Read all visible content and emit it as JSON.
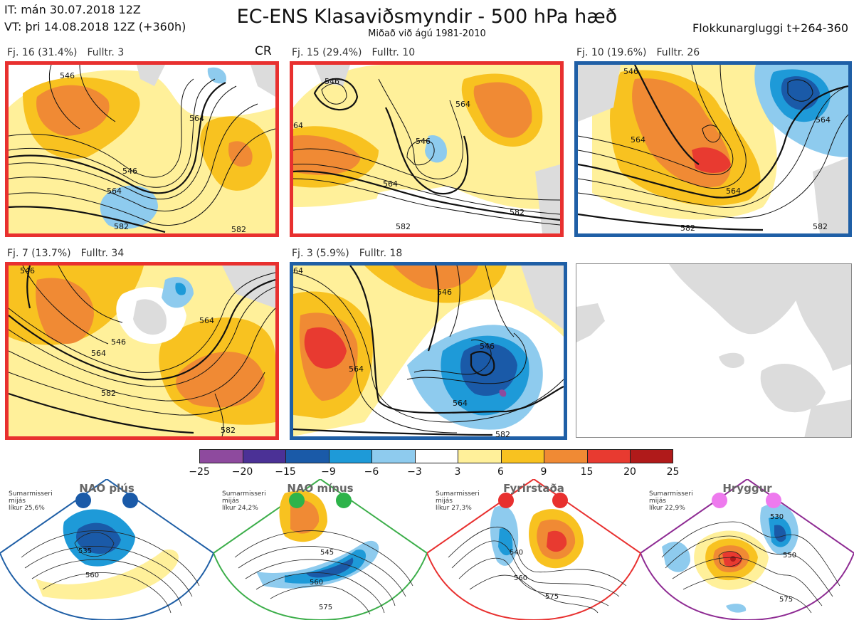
{
  "header": {
    "it_line": "IT: mán 30.07.2018 12Z",
    "vt_line": "VT: þri 14.08.2018 12Z  (+360h)",
    "title": "EC-ENS Klasaviðsmyndir - 500 hPa hæð",
    "subtitle": "Miðað við ágú 1981-2010",
    "window": "Flokkunargluggi t+264-360"
  },
  "panels": [
    {
      "label": "Fj. 16 (31.4%)",
      "rep": "Fulltr. 3",
      "border": "red"
    },
    {
      "label": "Fj. 15 (29.4%)",
      "rep": "Fulltr. 10",
      "border": "red"
    },
    {
      "label": "Fj. 10 (19.6%)",
      "rep": "Fulltr. 26",
      "border": "blue"
    },
    {
      "label": "Fj. 7 (13.7%)",
      "rep": "Fulltr. 34",
      "border": "red"
    },
    {
      "label": "Fj. 3 (5.9%)",
      "rep": "Fulltr. 18",
      "border": "blue"
    }
  ],
  "cr_label": "CR",
  "contour_labels": {
    "p1": [
      "546",
      "564",
      "546",
      "564",
      "582",
      "582"
    ],
    "p2": [
      "546",
      "546",
      "564",
      "564",
      "582",
      "582",
      "64"
    ],
    "p3": [
      "546",
      "564",
      "564",
      "564",
      "582",
      "582"
    ],
    "p4": [
      "546",
      "564",
      "546",
      "564",
      "582",
      "582"
    ],
    "p5": [
      "546",
      "564",
      "546",
      "564",
      "582",
      "64"
    ]
  },
  "colorbar": {
    "ticks": [
      "−25",
      "−20",
      "−15",
      "−9",
      "−6",
      "−3",
      "3",
      "6",
      "9",
      "15",
      "20",
      "25"
    ],
    "colors": [
      "#8e4a9e",
      "#4b3196",
      "#1a5aa8",
      "#1e9ad8",
      "#8ecbee",
      "#ffffff",
      "#fff09a",
      "#f8c220",
      "#f08a34",
      "#e83a30",
      "#b01a1a"
    ]
  },
  "regimes": [
    {
      "name": "NAO plús",
      "note": [
        "Sumarmisseri",
        "mijás",
        "líkur 25,6%"
      ],
      "color": "#1f5fa6",
      "dot": "#1a5aa8",
      "labels": [
        "535",
        "560"
      ]
    },
    {
      "name": "NAO mínus",
      "note": [
        "Sumarmisseri",
        "mijás",
        "líkur 24,2%"
      ],
      "color": "#3cae4a",
      "dot": "#2db34a",
      "labels": [
        "545",
        "560",
        "575"
      ]
    },
    {
      "name": "Fyrirstaða",
      "note": [
        "Sumarmisseri",
        "mijás",
        "líkur 27,3%"
      ],
      "color": "#e8302f",
      "dot": "#e8302f",
      "labels": [
        "540",
        "560",
        "575"
      ]
    },
    {
      "name": "Hryggur",
      "note": [
        "Sumarmisseri",
        "mijás",
        "líkur 22,9%"
      ],
      "color": "#8e2b93",
      "dot": "#ee7aee",
      "labels": [
        "530",
        "550",
        "575"
      ]
    }
  ]
}
